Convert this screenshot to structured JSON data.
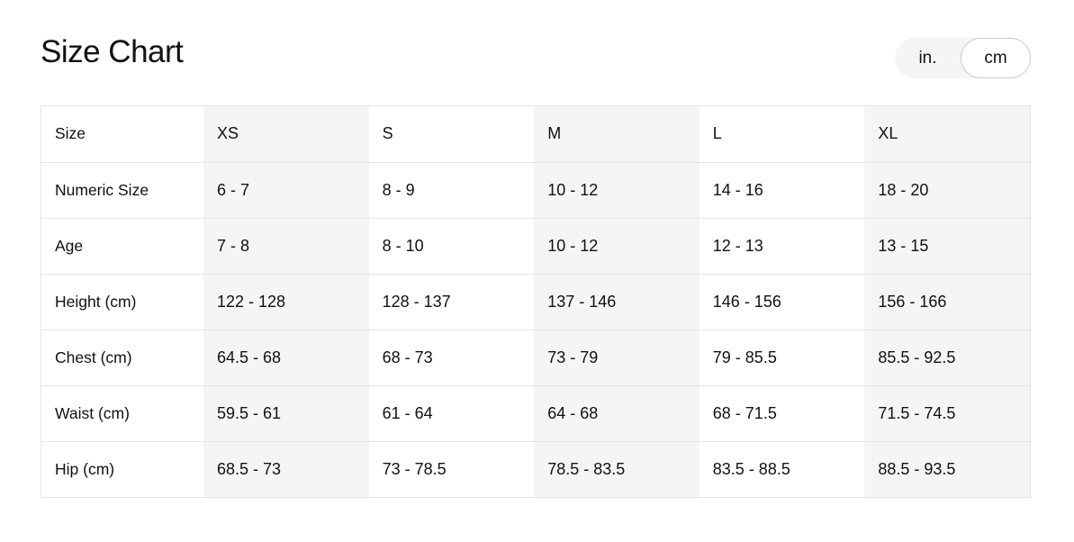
{
  "title": "Size Chart",
  "unit_toggle": {
    "options": [
      "in.",
      "cm"
    ],
    "selected": "cm"
  },
  "table": {
    "header": {
      "label": "Size",
      "sizes": [
        "XS",
        "S",
        "M",
        "L",
        "XL"
      ]
    },
    "rows": [
      {
        "label": "Numeric Size",
        "values": [
          "6 - 7",
          "8 - 9",
          "10 - 12",
          "14 - 16",
          "18 - 20"
        ]
      },
      {
        "label": "Age",
        "values": [
          "7 - 8",
          "8 - 10",
          "10 - 12",
          "12 - 13",
          "13 - 15"
        ]
      },
      {
        "label": "Height (cm)",
        "values": [
          "122 - 128",
          "128 - 137",
          "137 - 146",
          "146 - 156",
          "156 - 166"
        ]
      },
      {
        "label": "Chest (cm)",
        "values": [
          "64.5 - 68",
          "68 - 73",
          "73 - 79",
          "79 - 85.5",
          "85.5 - 92.5"
        ]
      },
      {
        "label": "Waist (cm)",
        "values": [
          "59.5 - 61",
          "61 - 64",
          "64 - 68",
          "68 - 71.5",
          "71.5 - 74.5"
        ]
      },
      {
        "label": "Hip (cm)",
        "values": [
          "68.5 - 73",
          "73 - 78.5",
          "78.5 - 83.5",
          "83.5 - 88.5",
          "88.5 - 93.5"
        ]
      }
    ]
  },
  "colors": {
    "shaded_column": "#f5f5f5",
    "border": "#e5e5e5",
    "text": "#111111"
  }
}
